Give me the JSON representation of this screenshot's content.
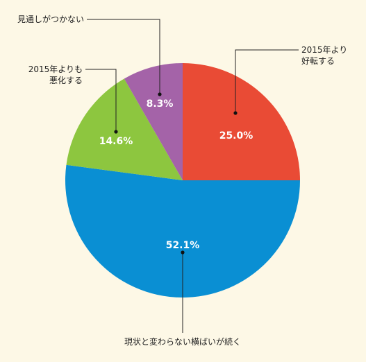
{
  "chart_data": {
    "type": "pie",
    "slices": [
      {
        "name": "2015年より好転する",
        "label_lines": [
          "2015年より",
          "好転する"
        ],
        "value": 25.0,
        "value_label": "25.0%",
        "color": "#e94b35"
      },
      {
        "name": "現状と変わらない横ばいが続く",
        "label_lines": [
          "現状と変わらない横ばいが続く"
        ],
        "value": 52.1,
        "value_label": "52.1%",
        "color": "#0a8fd3"
      },
      {
        "name": "2015年よりも悪化する",
        "label_lines": [
          "2015年よりも",
          "悪化する"
        ],
        "value": 14.6,
        "value_label": "14.6%",
        "color": "#8dc63f"
      },
      {
        "name": "見通しがつかない",
        "label_lines": [
          "見通しがつかない"
        ],
        "value": 8.3,
        "value_label": "8.3%",
        "color": "#a463a8"
      }
    ],
    "start": "12 o'clock",
    "direction": "clockwise",
    "legend": "none",
    "labels": "callouts with leader lines"
  }
}
